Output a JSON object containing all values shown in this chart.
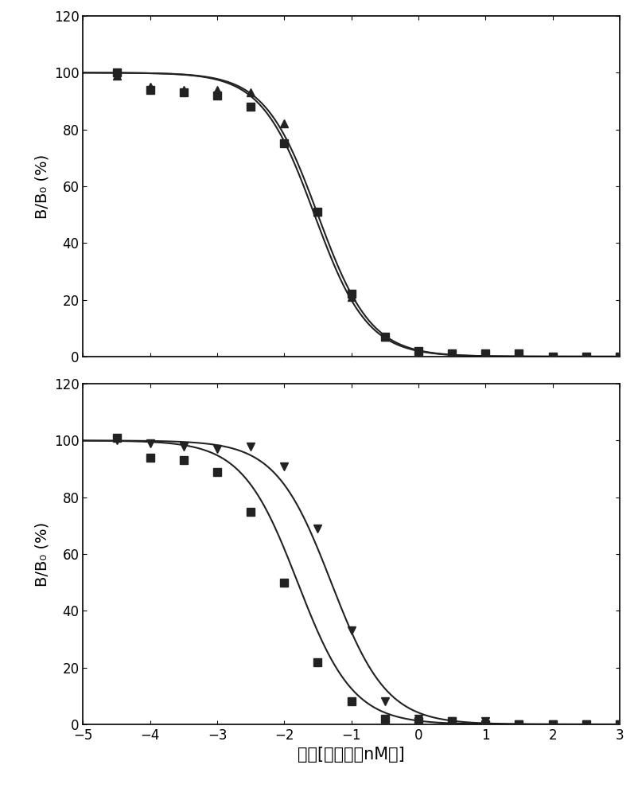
{
  "xlim": [
    -5,
    3
  ],
  "ylim": [
    0,
    120
  ],
  "yticks": [
    0,
    20,
    40,
    60,
    80,
    100,
    120
  ],
  "xticks": [
    -5,
    -4,
    -3,
    -2,
    -1,
    0,
    1,
    2,
    3
  ],
  "ylabel": "B/B₀ (%)",
  "xlabel": "对数[胰岛素（nM）]",
  "panel1": {
    "series1": {
      "x": [
        -4.5,
        -4,
        -3.5,
        -3,
        -2.5,
        -2,
        -1.5,
        -1,
        -0.5,
        0,
        0.5,
        1,
        1.5,
        2,
        2.5,
        3
      ],
      "y": [
        100,
        94,
        93,
        92,
        88,
        75,
        51,
        22,
        7,
        2,
        1,
        1,
        1,
        0,
        0,
        0
      ],
      "marker": "s",
      "ec50": -1.5,
      "hill": 1.1
    },
    "series2": {
      "x": [
        -4.5,
        -4,
        -3.5,
        -3,
        -2.5,
        -2,
        -1.5,
        -1,
        -0.5,
        0,
        0.5,
        1,
        1.5,
        2,
        2.5,
        3
      ],
      "y": [
        99,
        95,
        94,
        94,
        93,
        82,
        51,
        21,
        7,
        2,
        1,
        0,
        0,
        -1,
        -1,
        -1
      ],
      "marker": "^",
      "ec50": -1.55,
      "hill": 1.1
    }
  },
  "panel2": {
    "series1": {
      "x": [
        -4.5,
        -4,
        -3.5,
        -3,
        -2.5,
        -2,
        -1.5,
        -1,
        -0.5,
        0,
        0.5,
        1,
        1.5,
        2,
        2.5,
        3
      ],
      "y": [
        101,
        94,
        93,
        89,
        75,
        50,
        22,
        8,
        2,
        1,
        1,
        0,
        0,
        0,
        0,
        0
      ],
      "marker": "s",
      "ec50": -1.8,
      "hill": 1.05
    },
    "series2": {
      "x": [
        -4.5,
        -4,
        -3.5,
        -3,
        -2.5,
        -2,
        -1.5,
        -1,
        -0.5,
        0,
        0.5,
        1,
        1.5,
        2,
        2.5,
        3
      ],
      "y": [
        100,
        99,
        98,
        97,
        98,
        91,
        69,
        33,
        8,
        2,
        1,
        1,
        0,
        0,
        0,
        0
      ],
      "marker": "v",
      "ec50": -1.3,
      "hill": 1.05
    }
  },
  "color": "#222222",
  "markersize": 7,
  "linewidth": 1.5,
  "background": "#ffffff"
}
